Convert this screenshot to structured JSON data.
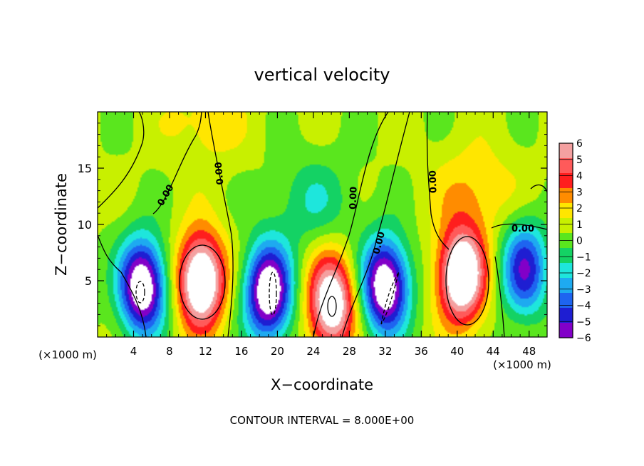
{
  "chart_data": {
    "type": "heatmap",
    "title": "vertical velocity",
    "xlabel": "X−coordinate",
    "ylabel": "Z−coordinate",
    "x_unit_left": "(×1000 m)",
    "x_unit_right": "(×1000 m)",
    "footer": "CONTOUR INTERVAL = 8.000E+00",
    "xlim": [
      0,
      50
    ],
    "ylim": [
      0,
      20
    ],
    "x_ticks": [
      4,
      8,
      12,
      16,
      20,
      24,
      28,
      32,
      36,
      40,
      44,
      48
    ],
    "y_ticks": [
      5,
      10,
      15
    ],
    "zero_contour_label": "0.00",
    "colorbar": {
      "levels": [
        6,
        5,
        4,
        3,
        2,
        1,
        0,
        -1,
        -2,
        -3,
        -4,
        -5,
        -6
      ],
      "labels": [
        "6",
        "5",
        "4",
        "3",
        "2",
        "1",
        "0",
        "−1",
        "−2",
        "−3",
        "−4",
        "−5",
        "−6"
      ],
      "colors": [
        "#f4a0a0",
        "#ff5a5a",
        "#ff1e1e",
        "#ff8c00",
        "#ffe600",
        "#c8f000",
        "#5ae61e",
        "#14d264",
        "#1ee6dc",
        "#1eaaf0",
        "#1e64f0",
        "#1e1ed2",
        "#8200c8"
      ],
      "saturated_high": "#ffffff",
      "saturated_low": "#ffffff"
    },
    "features": [
      {
        "x": 5,
        "z": 4.5,
        "w": -9
      },
      {
        "x": 11.5,
        "z": 5,
        "w": 9
      },
      {
        "x": 19,
        "z": 4,
        "w": -9
      },
      {
        "x": 26,
        "z": 3,
        "w": 8
      },
      {
        "x": 32,
        "z": 4.5,
        "w": -9
      },
      {
        "x": 40.5,
        "z": 5.5,
        "w": 9
      },
      {
        "x": 47.5,
        "z": 6,
        "w": -6
      },
      {
        "x": 12,
        "z": 19,
        "w": 1.5
      },
      {
        "x": 42,
        "z": 13,
        "w": 2
      },
      {
        "x": 24,
        "z": 12,
        "w": -2
      }
    ]
  }
}
